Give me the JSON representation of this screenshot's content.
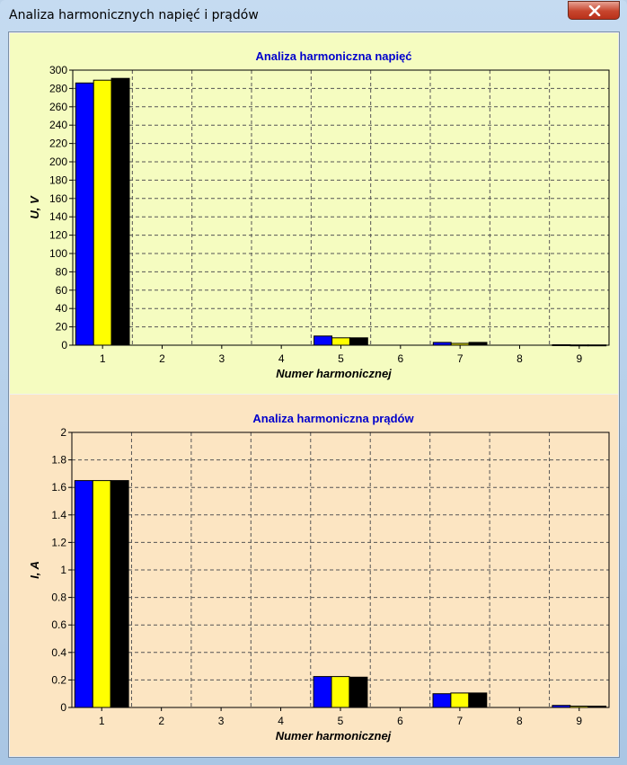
{
  "window": {
    "title": "Analiza harmonicznych napięć i prądów"
  },
  "colors": {
    "series_1": "#0000ff",
    "series_2": "#ffff00",
    "series_3": "#000000",
    "top_panel_bg": "#f5fcc0",
    "bottom_panel_bg": "#fce5c2",
    "title_text": "#0000cc"
  },
  "chart_data": [
    {
      "type": "bar",
      "title": "Analiza harmoniczna napięć",
      "xlabel": "Numer harmonicznej",
      "ylabel": "U, V",
      "categories": [
        "1",
        "2",
        "3",
        "4",
        "5",
        "6",
        "7",
        "8",
        "9"
      ],
      "ylim": [
        0,
        300
      ],
      "yticks": [
        "0",
        "20",
        "40",
        "60",
        "80",
        "100",
        "120",
        "140",
        "160",
        "180",
        "200",
        "220",
        "240",
        "260",
        "280",
        "300"
      ],
      "grid": true,
      "series": [
        {
          "values": [
            286,
            0,
            0,
            0,
            10,
            0,
            3,
            0,
            0.5
          ]
        },
        {
          "values": [
            289,
            0,
            0,
            0,
            8,
            0,
            2,
            0,
            0.3
          ]
        },
        {
          "values": [
            291,
            0,
            0,
            0,
            8,
            0,
            3,
            0,
            0.3
          ]
        }
      ]
    },
    {
      "type": "bar",
      "title": "Analiza harmoniczna prądów",
      "xlabel": "Numer harmonicznej",
      "ylabel": "I, A",
      "categories": [
        "1",
        "2",
        "3",
        "4",
        "5",
        "6",
        "7",
        "8",
        "9"
      ],
      "ylim": [
        0,
        2
      ],
      "yticks": [
        "0",
        "0.2",
        "0.4",
        "0.6",
        "0.8",
        "1",
        "1.2",
        "1.4",
        "1.6",
        "1.8",
        "2"
      ],
      "grid": true,
      "series": [
        {
          "values": [
            1.65,
            0,
            0,
            0,
            0.225,
            0,
            0.1,
            0,
            0.015
          ]
        },
        {
          "values": [
            1.65,
            0,
            0,
            0,
            0.225,
            0,
            0.105,
            0,
            0.01
          ]
        },
        {
          "values": [
            1.65,
            0,
            0,
            0,
            0.22,
            0,
            0.105,
            0,
            0.01
          ]
        }
      ]
    }
  ]
}
